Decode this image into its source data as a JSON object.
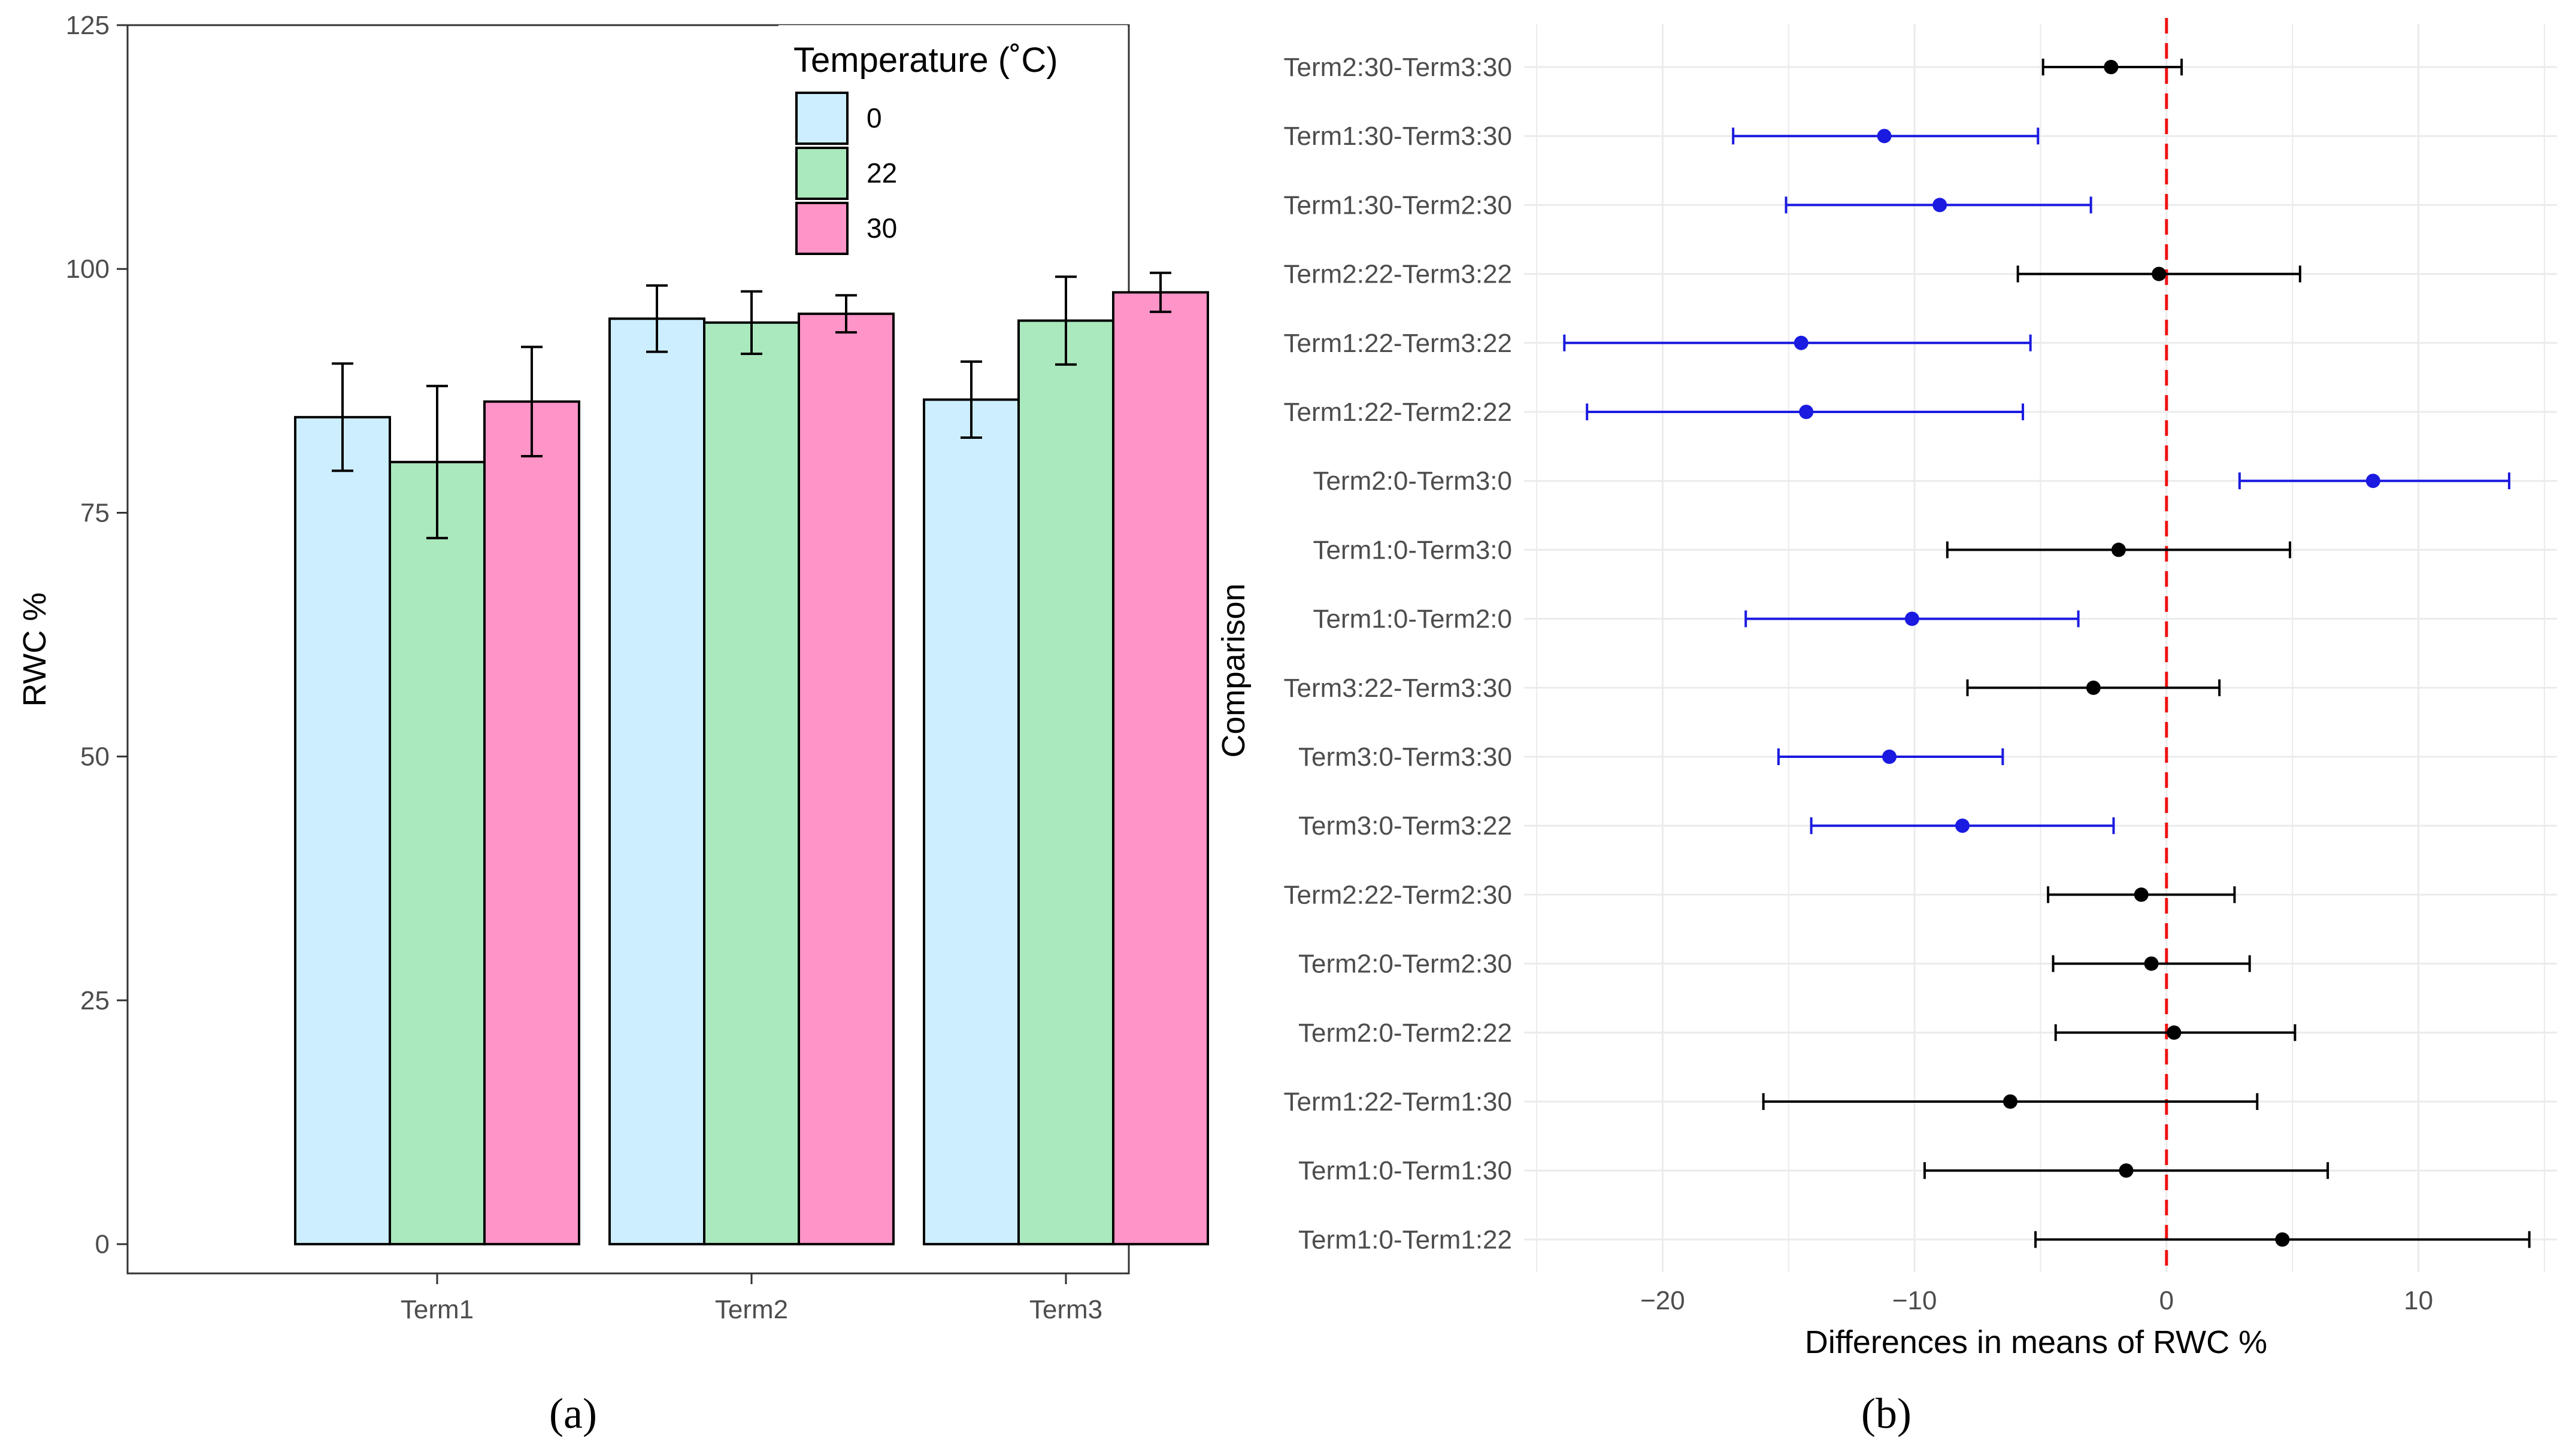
{
  "chart_data": [
    {
      "type": "bar",
      "panel_label": "(a)",
      "ylabel": "RWC %",
      "xlabel": "",
      "ylim": [
        -3,
        125
      ],
      "yticks": [
        0,
        25,
        50,
        75,
        100,
        125
      ],
      "ytick_labels": [
        "0",
        "25",
        "50",
        "75",
        "100",
        "125"
      ],
      "categories": [
        "Term1",
        "Term2",
        "Term3"
      ],
      "legend": {
        "title": "Temperature (˚C)",
        "position": "top-right"
      },
      "series": [
        {
          "name": "0",
          "color": "#cceeff",
          "values": [
            84.8,
            94.9,
            86.6
          ],
          "err": [
            5.5,
            3.4,
            3.9
          ]
        },
        {
          "name": "22",
          "color": "#aae8bd",
          "values": [
            80.2,
            94.5,
            94.7
          ],
          "err": [
            7.8,
            3.2,
            4.5
          ]
        },
        {
          "name": "30",
          "color": "#ff94c8",
          "values": [
            86.4,
            95.4,
            97.6
          ],
          "err": [
            5.6,
            1.9,
            2.0
          ]
        }
      ]
    },
    {
      "type": "scatter",
      "subtype": "interval-plot",
      "panel_label": "(b)",
      "xlabel": "Differences in means of RWC %",
      "ylabel": "Comparison",
      "xlim": [
        -25.5,
        15.5
      ],
      "xticks": [
        -20,
        -10,
        0,
        10
      ],
      "xtick_labels": [
        "−20",
        "−10",
        "0",
        "10"
      ],
      "reference_line": {
        "x": 0,
        "color": "#ee1111",
        "style": "dashed"
      },
      "significant_color": "#1a1ae0",
      "nonsignificant_color": "#000000",
      "comparisons": [
        {
          "label": "Term2:30-Term3:30",
          "diff": -2.2,
          "lwr": -4.9,
          "upr": 0.6,
          "significant": false
        },
        {
          "label": "Term1:30-Term3:30",
          "diff": -11.2,
          "lwr": -17.2,
          "upr": -5.1,
          "significant": true
        },
        {
          "label": "Term1:30-Term2:30",
          "diff": -9.0,
          "lwr": -15.1,
          "upr": -3.0,
          "significant": true
        },
        {
          "label": "Term2:22-Term3:22",
          "diff": -0.3,
          "lwr": -5.9,
          "upr": 5.3,
          "significant": false
        },
        {
          "label": "Term1:22-Term3:22",
          "diff": -14.5,
          "lwr": -23.9,
          "upr": -5.4,
          "significant": true
        },
        {
          "label": "Term1:22-Term2:22",
          "diff": -14.3,
          "lwr": -23.0,
          "upr": -5.7,
          "significant": true
        },
        {
          "label": "Term2:0-Term3:0",
          "diff": 8.2,
          "lwr": 2.9,
          "upr": 13.6,
          "significant": true
        },
        {
          "label": "Term1:0-Term3:0",
          "diff": -1.9,
          "lwr": -8.7,
          "upr": 4.9,
          "significant": false
        },
        {
          "label": "Term1:0-Term2:0",
          "diff": -10.1,
          "lwr": -16.7,
          "upr": -3.5,
          "significant": true
        },
        {
          "label": "Term3:22-Term3:30",
          "diff": -2.9,
          "lwr": -7.9,
          "upr": 2.1,
          "significant": false
        },
        {
          "label": "Term3:0-Term3:30",
          "diff": -11.0,
          "lwr": -15.4,
          "upr": -6.5,
          "significant": true
        },
        {
          "label": "Term3:0-Term3:22",
          "diff": -8.1,
          "lwr": -14.1,
          "upr": -2.1,
          "significant": true
        },
        {
          "label": "Term2:22-Term2:30",
          "diff": -1.0,
          "lwr": -4.7,
          "upr": 2.7,
          "significant": false
        },
        {
          "label": "Term2:0-Term2:30",
          "diff": -0.6,
          "lwr": -4.5,
          "upr": 3.3,
          "significant": false
        },
        {
          "label": "Term2:0-Term2:22",
          "diff": 0.3,
          "lwr": -4.4,
          "upr": 5.1,
          "significant": false
        },
        {
          "label": "Term1:22-Term1:30",
          "diff": -6.2,
          "lwr": -16.0,
          "upr": 3.6,
          "significant": false
        },
        {
          "label": "Term1:0-Term1:30",
          "diff": -1.6,
          "lwr": -9.6,
          "upr": 6.4,
          "significant": false
        },
        {
          "label": "Term1:0-Term1:22",
          "diff": 4.6,
          "lwr": -5.2,
          "upr": 14.4,
          "significant": false
        }
      ]
    }
  ]
}
